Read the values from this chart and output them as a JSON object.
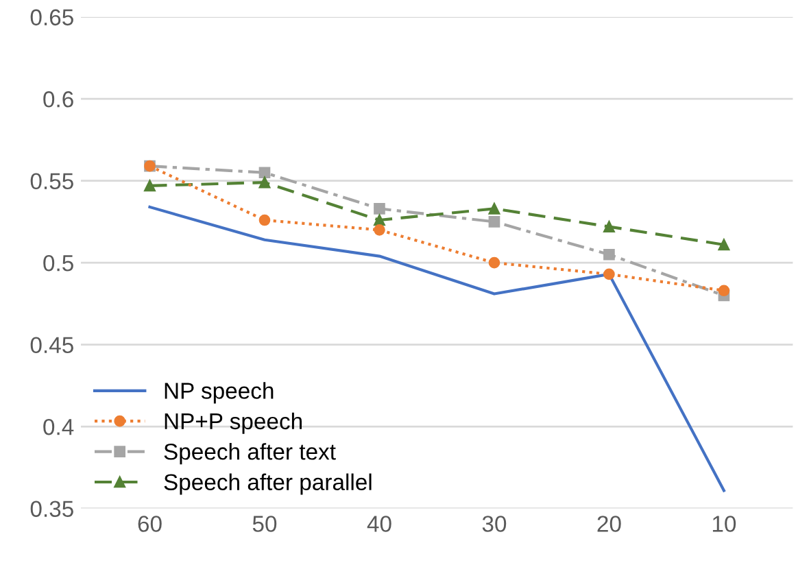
{
  "chart_data": {
    "type": "line",
    "categories": [
      "60",
      "50",
      "40",
      "30",
      "20",
      "10"
    ],
    "ylim": [
      0.35,
      0.65
    ],
    "yticks": [
      0.35,
      0.4,
      0.45,
      0.5,
      0.55,
      0.6,
      0.65
    ],
    "grid": "y",
    "legend": "bottom left",
    "series": [
      {
        "name": "NP speech",
        "color": "#4472c4",
        "marker": "none",
        "line_style": "solid",
        "values": [
          0.534,
          0.514,
          0.504,
          0.481,
          0.493,
          0.361
        ]
      },
      {
        "name": "NP+P speech",
        "color": "#ed7d31",
        "marker": "circle",
        "line_style": "dotted",
        "values": [
          0.559,
          0.526,
          0.52,
          0.5,
          0.493,
          0.483
        ]
      },
      {
        "name": "Speech after text",
        "color": "#a5a5a5",
        "marker": "square",
        "line_style": "dashdot",
        "values": [
          0.559,
          0.555,
          0.533,
          0.525,
          0.505,
          0.48
        ]
      },
      {
        "name": "Speech after parallel",
        "color": "#548235",
        "marker": "triangle",
        "line_style": "dashed",
        "values": [
          0.547,
          0.549,
          0.526,
          0.533,
          0.522,
          0.511
        ]
      }
    ]
  }
}
